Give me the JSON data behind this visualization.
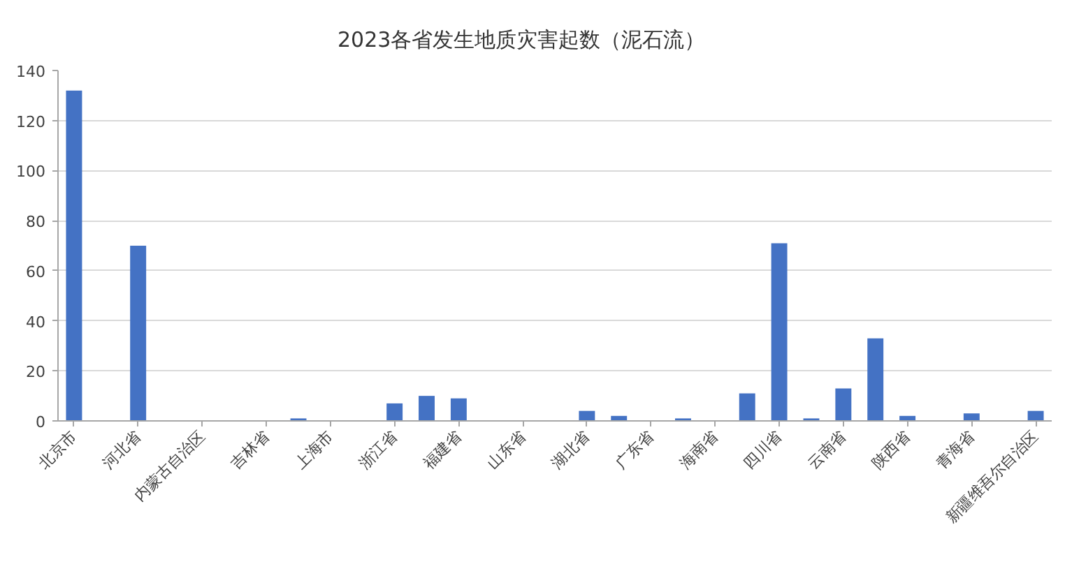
{
  "chart_data": {
    "type": "bar",
    "title": "2023各省发生地质灾害起数（泥石流）",
    "categories": [
      "北京市",
      null,
      "河北省",
      null,
      "内蒙古自治区",
      null,
      "吉林省",
      null,
      "上海市",
      null,
      "浙江省",
      null,
      "福建省",
      null,
      "山东省",
      null,
      "湖北省",
      null,
      "广东省",
      null,
      "海南省",
      null,
      "四川省",
      null,
      "云南省",
      null,
      "陕西省",
      null,
      "青海省",
      null,
      "新疆维吾尔自治区"
    ],
    "values": [
      132,
      0,
      70,
      0,
      0,
      0,
      0,
      1,
      0,
      0,
      7,
      10,
      9,
      0,
      0,
      0,
      4,
      2,
      0,
      1,
      0,
      11,
      71,
      1,
      13,
      33,
      2,
      0,
      3,
      0,
      4
    ],
    "color": "#4472c4",
    "ylim": [
      0,
      140
    ],
    "yticks": [
      0,
      20,
      40,
      60,
      80,
      100,
      120,
      140
    ],
    "grid": "y"
  }
}
